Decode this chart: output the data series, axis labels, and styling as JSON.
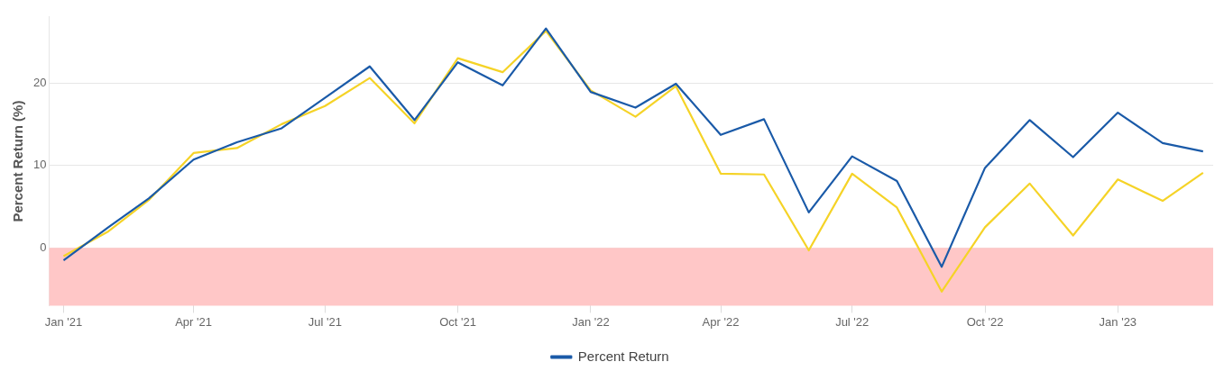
{
  "chart_data": {
    "type": "line",
    "ylabel": "Percent Return (%)",
    "x": [
      "2021-01",
      "2021-02",
      "2021-03",
      "2021-04",
      "2021-05",
      "2021-06",
      "2021-07",
      "2021-08",
      "2021-09",
      "2021-10",
      "2021-11",
      "2021-12",
      "2022-01",
      "2022-02",
      "2022-03",
      "2022-04",
      "2022-05",
      "2022-06",
      "2022-07",
      "2022-08",
      "2022-09",
      "2022-10",
      "2022-11",
      "2022-12",
      "2023-01",
      "2023-02",
      "2023-03"
    ],
    "series": [
      {
        "name": "Percent Return",
        "color": "#1a5aa8",
        "values": [
          -1.5,
          2.5,
          6,
          10.7,
          12.8,
          14.5,
          18.2,
          22,
          15.5,
          22.5,
          19.7,
          26.6,
          18.9,
          17,
          19.9,
          13.7,
          15.6,
          4.3,
          11.1,
          8.1,
          -2.3,
          9.7,
          15.5,
          11,
          16.4,
          12.7,
          11.7
        ]
      },
      {
        "color": "#f5d327",
        "values": [
          -1,
          2,
          5.8,
          11.5,
          12.1,
          15,
          17.2,
          20.6,
          15.1,
          23,
          21.3,
          26.3,
          19.1,
          15.9,
          19.6,
          9,
          8.9,
          -0.3,
          9,
          4.9,
          -5.3,
          2.5,
          7.8,
          1.5,
          8.3,
          5.7,
          9.1
        ]
      }
    ],
    "xlim": [
      "2020-12-22",
      "2023-03-08"
    ],
    "xticks": [
      {
        "value": "2021-01",
        "label": "Jan '21"
      },
      {
        "value": "2021-04",
        "label": "Apr '21"
      },
      {
        "value": "2021-07",
        "label": "Jul '21"
      },
      {
        "value": "2021-10",
        "label": "Oct '21"
      },
      {
        "value": "2022-01",
        "label": "Jan '22"
      },
      {
        "value": "2022-04",
        "label": "Apr '22"
      },
      {
        "value": "2022-07",
        "label": "Jul '22"
      },
      {
        "value": "2022-10",
        "label": "Oct '22"
      },
      {
        "value": "2023-01",
        "label": "Jan '23"
      }
    ],
    "ylim": [
      -7,
      28
    ],
    "yticks": [
      0,
      10,
      20
    ],
    "bands": [
      {
        "axis": "y",
        "from": -7,
        "to": 0,
        "color": "#ffc7c7"
      }
    ],
    "grid": "y",
    "legend": "bottom",
    "marker": "none",
    "line_style": "solid"
  }
}
